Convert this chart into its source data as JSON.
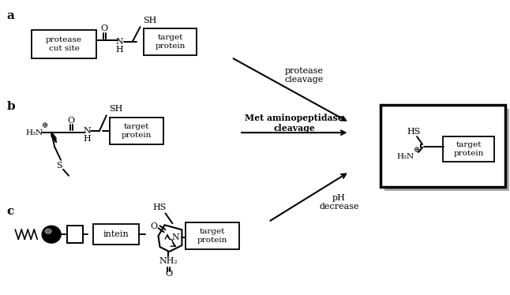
{
  "bg_color": "#ffffff",
  "figsize": [
    6.46,
    3.74
  ],
  "dpi": 100,
  "label_a": "a",
  "label_b": "b",
  "label_c": "c",
  "box_protease": "protease\ncut site",
  "box_target": "target\nprotein",
  "box_intein": "intein",
  "text_O": "O",
  "text_SH_a": "SH",
  "text_SH_b": "SH",
  "text_HS_prod": "HS",
  "text_H3N_b": "H₃N",
  "text_plus": "⊕",
  "text_S": "S",
  "text_N": "N",
  "text_H": "H",
  "text_protease_label": "protease\ncleavage",
  "text_met_label": "Met aminopeptidase\ncleavage",
  "text_pH_label": "pH\ndecrease",
  "text_NH2": "NH₂",
  "text_HS_intein": "HS",
  "font_serif": "DejaVu Serif"
}
